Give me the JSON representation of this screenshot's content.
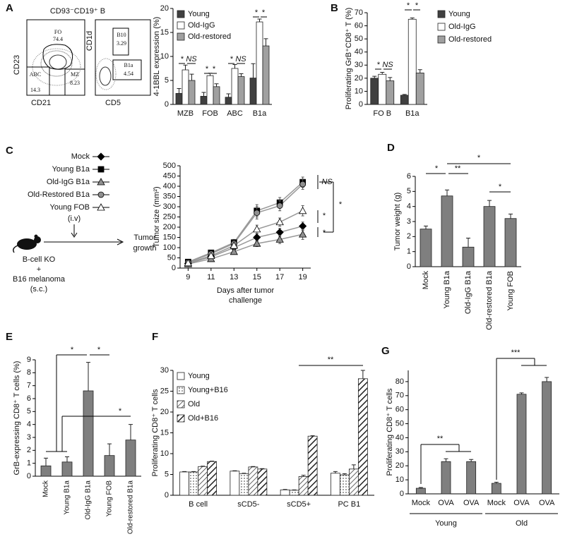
{
  "panel_labels": [
    "A",
    "B",
    "C",
    "D",
    "E",
    "F",
    "G"
  ],
  "flow": {
    "title": "CD93⁻CD19⁺ B",
    "plots": [
      {
        "xlabel": "CD21",
        "ylabel": "CD23",
        "gates": [
          {
            "name": "FO",
            "value": 74.4
          },
          {
            "name": "ABC",
            "value": 14.3
          },
          {
            "name": "MZ",
            "value": 8.23
          }
        ]
      },
      {
        "xlabel": "CD5",
        "ylabel": "CD1d",
        "gates": [
          {
            "name": "B10",
            "value": 3.29
          },
          {
            "name": "B1a",
            "value": 4.54
          }
        ]
      }
    ]
  },
  "diagram": {
    "route": "(i.v)",
    "outcome": [
      "Tumor",
      "growth"
    ],
    "host": "B-cell KO",
    "plus": "+",
    "tumor": "B16 melanoma",
    "tumor_route": "(s.c.)"
  },
  "chart_data": [
    {
      "type": "bar",
      "ylabel": "4-1BBL expression (%)",
      "categories": [
        "MZB",
        "FOB",
        "ABC",
        "B1a"
      ],
      "series": [
        {
          "name": "Young",
          "color": "#404040",
          "values": [
            2.3,
            1.7,
            1.5,
            5.5
          ],
          "errors": [
            1.0,
            0.8,
            0.7,
            3.0
          ]
        },
        {
          "name": "Old-IgG",
          "color": "#ffffff",
          "values": [
            7.2,
            6.0,
            7.5,
            17.2
          ],
          "errors": [
            1.0,
            0.5,
            0.8,
            0.6
          ]
        },
        {
          "name": "Old-restored",
          "color": "#a0a0a0",
          "values": [
            5.0,
            3.7,
            5.8,
            12.2
          ],
          "errors": [
            1.3,
            0.6,
            0.6,
            1.5
          ]
        }
      ],
      "ylim": [
        0,
        20
      ],
      "yticks": [
        0,
        5,
        10,
        15,
        20
      ],
      "legend": "upper left",
      "annotations": [
        "*",
        "NS",
        "*",
        "*",
        "*",
        "NS",
        "*",
        "*"
      ]
    },
    {
      "type": "bar",
      "ylabel": "Proliferating GrB⁺CD8⁺ T (%)",
      "categories": [
        "FO B",
        "B1a"
      ],
      "series": [
        {
          "name": "Young",
          "color": "#404040",
          "values": [
            20,
            7
          ],
          "errors": [
            1.5,
            0.6
          ]
        },
        {
          "name": "Old-IgG",
          "color": "#ffffff",
          "values": [
            23,
            65
          ],
          "errors": [
            1.5,
            1.0
          ]
        },
        {
          "name": "Old-restored",
          "color": "#a0a0a0",
          "values": [
            18,
            24
          ],
          "errors": [
            2.5,
            2.5
          ]
        }
      ],
      "ylim": [
        0,
        70
      ],
      "yticks": [
        0,
        10,
        20,
        30,
        40,
        50,
        60,
        70
      ],
      "legend": "right",
      "annotations": [
        "*",
        "NS",
        "*",
        "*"
      ]
    },
    {
      "type": "line",
      "ylabel": "Tumor size (mm²)",
      "xlabel": [
        "Days after tumor",
        "challenge"
      ],
      "x": [
        9,
        11,
        13,
        15,
        17,
        19
      ],
      "xlim": [
        8.3,
        19.7
      ],
      "xticks": [
        9,
        11,
        13,
        15,
        17,
        19
      ],
      "ylim": [
        0,
        500
      ],
      "yticks": [
        0,
        50,
        100,
        150,
        200,
        250,
        300,
        350,
        400,
        450,
        500
      ],
      "line_color": "#999999",
      "series": [
        {
          "name": "Mock",
          "color": "#000000",
          "marker": "diamond",
          "values": [
            22,
            55,
            100,
            150,
            175,
            205
          ],
          "errors": [
            5,
            8,
            12,
            18,
            20,
            20
          ]
        },
        {
          "name": "Young B1a",
          "color": "#000000",
          "marker": "square",
          "values": [
            30,
            75,
            125,
            280,
            320,
            420
          ],
          "errors": [
            5,
            10,
            15,
            30,
            25,
            25
          ]
        },
        {
          "name": "Old-IgG B1a",
          "color": "#909090",
          "marker": "triangle",
          "values": [
            20,
            45,
            80,
            120,
            140,
            165
          ],
          "errors": [
            5,
            8,
            12,
            15,
            20,
            25
          ]
        },
        {
          "name": "Old-Restored B1a",
          "color": "#909090",
          "marker": "circle",
          "values": [
            28,
            70,
            120,
            270,
            305,
            410
          ],
          "errors": [
            5,
            10,
            15,
            30,
            25,
            25
          ]
        },
        {
          "name": "Young FOB",
          "color": "#ffffff",
          "marker": "triangle",
          "values": [
            25,
            60,
            110,
            190,
            225,
            280
          ],
          "errors": [
            5,
            8,
            12,
            20,
            20,
            25
          ]
        }
      ],
      "annotations": [
        "NS",
        "*",
        "*",
        "*"
      ]
    },
    {
      "type": "bar",
      "ylabel": "Tumor weight (g)",
      "categories": [
        "Mock",
        "Young B1a",
        "Old-IgG B1a",
        "Old-restored B1a",
        "Young FOB"
      ],
      "values": [
        2.5,
        4.7,
        1.3,
        4.0,
        3.2
      ],
      "errors": [
        0.2,
        0.4,
        0.6,
        0.4,
        0.3
      ],
      "color": "#7f7f7f",
      "ylim": [
        0,
        6
      ],
      "yticks": [
        0,
        1,
        2,
        3,
        4,
        5,
        6
      ],
      "annotations": [
        "*",
        "*",
        "**",
        "*"
      ]
    },
    {
      "type": "bar",
      "ylabel": "GrB-expressing CD8⁺ T cells (%)",
      "categories": [
        "Mock",
        "Young B1a",
        "Old-IgG B1a",
        "Young FOB",
        "Old-restored B1a"
      ],
      "values": [
        0.8,
        1.1,
        6.6,
        1.6,
        2.8
      ],
      "errors": [
        0.6,
        0.4,
        2.2,
        0.9,
        1.2
      ],
      "color": "#7f7f7f",
      "ylim": [
        0,
        9
      ],
      "yticks": [
        0,
        1,
        2,
        3,
        4,
        5,
        6,
        7,
        8,
        9
      ],
      "annotations": [
        "*",
        "*",
        "*"
      ]
    },
    {
      "type": "bar",
      "ylabel": "Proliferating CD8⁺ T cells",
      "categories": [
        "B cell",
        "sCD5-",
        "sCD5+",
        "PC B1"
      ],
      "series": [
        {
          "name": "Young",
          "color": "#ffffff",
          "values": [
            5.6,
            5.8,
            1.3,
            5.3
          ],
          "errors": [
            0.1,
            0.1,
            0.1,
            0.4
          ]
        },
        {
          "name": "Young+B16",
          "color": "#ffffff",
          "pattern": "dots",
          "values": [
            5.6,
            5.2,
            1.2,
            4.9
          ],
          "errors": [
            0.1,
            0.1,
            0.1,
            0.3
          ]
        },
        {
          "name": "Old",
          "color": "#ffffff",
          "pattern": "hatch",
          "values": [
            6.9,
            6.8,
            4.5,
            6.3
          ],
          "errors": [
            0.1,
            0.1,
            0.3,
            1.0
          ]
        },
        {
          "name": "Old+B16",
          "color": "#ffffff",
          "pattern": "hatch-bold",
          "values": [
            8.1,
            6.3,
            14.2,
            28
          ],
          "errors": [
            0.1,
            0.1,
            0.1,
            2.0
          ]
        }
      ],
      "ylim": [
        0,
        30
      ],
      "yticks": [
        0,
        5,
        10,
        15,
        20,
        25,
        30
      ],
      "legend": "upper left",
      "annotations": [
        "**"
      ]
    },
    {
      "type": "bar",
      "ylabel": "Proliferating CD8⁺ T cells",
      "categories": [
        "Mock",
        "OVA",
        "OVA",
        "Mock",
        "OVA",
        "OVA"
      ],
      "groups": [
        "Young",
        "Old"
      ],
      "values": [
        4,
        23,
        23,
        7.5,
        71,
        80
      ],
      "errors": [
        0.5,
        2,
        1.5,
        0.8,
        1,
        3
      ],
      "color": "#7f7f7f",
      "ylim": [
        0,
        88
      ],
      "yticks": [
        0,
        10,
        20,
        30,
        40,
        50,
        60,
        70,
        80
      ],
      "annotations": [
        "**",
        "***"
      ]
    }
  ]
}
